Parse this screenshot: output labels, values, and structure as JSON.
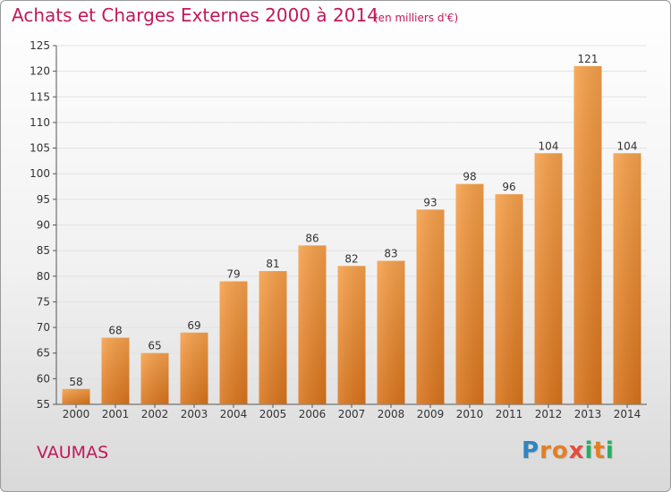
{
  "chart_data": {
    "type": "bar",
    "title": "Achats et Charges Externes 2000 à 2014",
    "subtitle": "(en milliers d'€)",
    "categories": [
      "2000",
      "2001",
      "2002",
      "2003",
      "2004",
      "2005",
      "2006",
      "2007",
      "2008",
      "2009",
      "2010",
      "2011",
      "2012",
      "2013",
      "2014"
    ],
    "values": [
      58,
      68,
      65,
      69,
      79,
      81,
      86,
      82,
      83,
      93,
      98,
      96,
      104,
      121,
      104
    ],
    "ylim": [
      55,
      125
    ],
    "yticks": [
      55,
      60,
      65,
      70,
      75,
      80,
      85,
      90,
      95,
      100,
      105,
      110,
      115,
      120,
      125
    ],
    "xlabel": "",
    "ylabel": "",
    "grid": true,
    "bar_color": "#f0913a"
  },
  "footer": {
    "commune": "VAUMAS",
    "brand_letters": [
      "P",
      "r",
      "o",
      "x",
      "i",
      "t",
      "i"
    ],
    "brand_colors": [
      "#2e86c1",
      "#e67e22",
      "#e67e22",
      "#e74c3c",
      "#27ae60",
      "#e67e22",
      "#27ae60"
    ]
  }
}
